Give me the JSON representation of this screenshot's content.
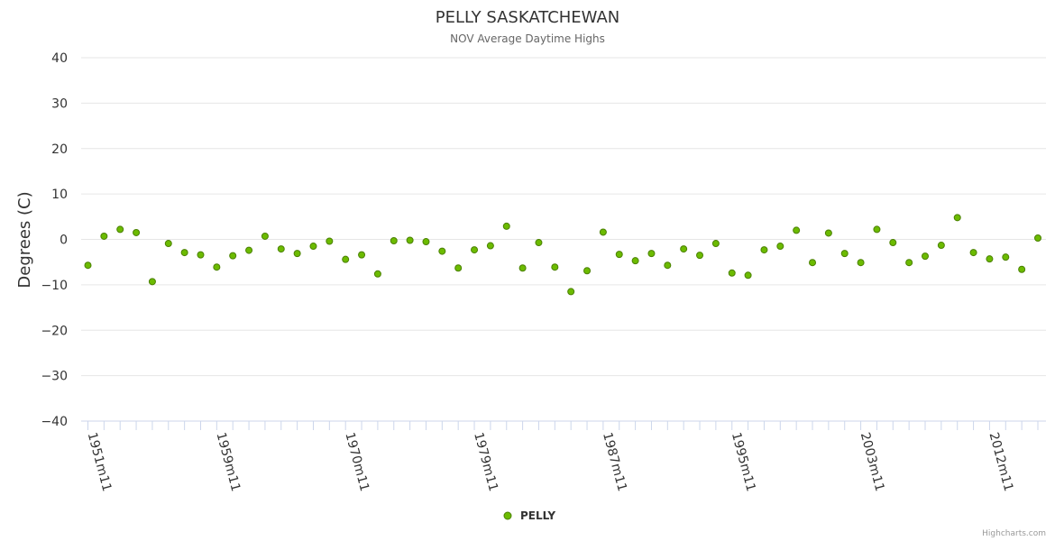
{
  "chart_data": {
    "type": "scatter",
    "title": "PELLY SASKATCHEWAN",
    "subtitle": "NOV Average Daytime Highs",
    "ylabel": "Degrees (C)",
    "xlabel": "",
    "ylim": [
      -40,
      40
    ],
    "yticks": [
      40,
      30,
      20,
      10,
      0,
      -10,
      -20,
      -30,
      -40
    ],
    "tick_labels": [
      {
        "index": 0,
        "label": "1951m11"
      },
      {
        "index": 8,
        "label": "1959m11"
      },
      {
        "index": 16,
        "label": "1970m11"
      },
      {
        "index": 24,
        "label": "1979m11"
      },
      {
        "index": 32,
        "label": "1987m11"
      },
      {
        "index": 40,
        "label": "1995m11"
      },
      {
        "index": 48,
        "label": "2003m11"
      },
      {
        "index": 56,
        "label": "2012m11"
      }
    ],
    "series": [
      {
        "name": "PELLY",
        "color": "#6cbb00",
        "values": [
          -5.7,
          0.7,
          2.2,
          1.5,
          -9.3,
          -0.9,
          -2.9,
          -3.4,
          -6.1,
          -3.6,
          -2.4,
          0.7,
          -2.1,
          -3.1,
          -1.5,
          -0.4,
          -4.4,
          -3.4,
          -7.6,
          -0.3,
          -0.2,
          -0.5,
          -2.6,
          -6.3,
          -2.3,
          -1.4,
          2.9,
          -6.3,
          -0.7,
          -6.1,
          -11.5,
          -6.9,
          1.6,
          -3.3,
          -4.7,
          -3.1,
          -5.7,
          -2.1,
          -3.5,
          -0.9,
          -7.4,
          -7.9,
          -2.3,
          -1.5,
          2.0,
          -5.1,
          1.4,
          -3.1,
          -5.1,
          2.2,
          -0.7,
          -5.1,
          -3.7,
          -1.3,
          4.8,
          -2.9,
          -4.3,
          -3.9,
          -6.6,
          0.3
        ]
      }
    ],
    "legend": "bottom-center"
  },
  "credits": "Highcharts.com"
}
